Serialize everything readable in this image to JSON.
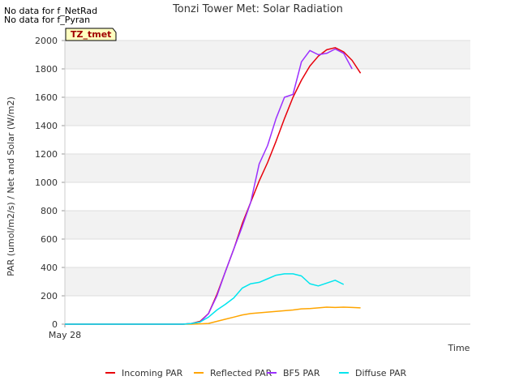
{
  "notes": [
    "No data for f_NetRad",
    "No data for f_Pyran"
  ],
  "site_badge": "TZ_tmet",
  "chart_data": {
    "type": "line",
    "title": "Tonzi Tower Met: Solar Radiation",
    "xlabel": "Time",
    "ylabel": "PAR (umol/m2/s) / Net and Solar (W/m2)",
    "x_tick_labels": [
      "May 28"
    ],
    "xlim": [
      0,
      24
    ],
    "ylim": [
      0,
      2000
    ],
    "yticks": [
      0,
      200,
      400,
      600,
      800,
      1000,
      1200,
      1400,
      1600,
      1800,
      2000
    ],
    "grid": true,
    "legend_position": "bottom",
    "x_hours": [
      0,
      0.5,
      1,
      1.5,
      2,
      2.5,
      3,
      3.5,
      4,
      4.5,
      5,
      5.5,
      6,
      6.5,
      7,
      7.5,
      8,
      8.5,
      9,
      9.5,
      10,
      10.5,
      11,
      11.5,
      12,
      12.5,
      13,
      13.5,
      14,
      14.5,
      15,
      15.5,
      16,
      16.5,
      17,
      17.5,
      18,
      18.5,
      19,
      19.5,
      20,
      20.5,
      21,
      21.5,
      22,
      22.5,
      23,
      23.5,
      24
    ],
    "series": [
      {
        "name": "Incoming PAR",
        "color": "#e8000b",
        "values": [
          0,
          0,
          0,
          0,
          0,
          0,
          0,
          0,
          0,
          0,
          0,
          0,
          0,
          0,
          0,
          5,
          20,
          75,
          210,
          370,
          530,
          710,
          860,
          1010,
          1140,
          1290,
          1450,
          1600,
          1720,
          1820,
          1890,
          1935,
          1950,
          1920,
          1860,
          1770
        ]
      },
      {
        "name": "Reflected PAR",
        "color": "#ffa500",
        "values": [
          0,
          0,
          0,
          0,
          0,
          0,
          0,
          0,
          0,
          0,
          0,
          0,
          0,
          0,
          0,
          0,
          2,
          5,
          20,
          35,
          50,
          65,
          75,
          80,
          85,
          90,
          95,
          100,
          108,
          110,
          115,
          120,
          118,
          120,
          118,
          115
        ]
      },
      {
        "name": "BF5 PAR",
        "color": "#9b30ff",
        "values": [
          0,
          0,
          0,
          0,
          0,
          0,
          0,
          0,
          0,
          0,
          0,
          0,
          0,
          0,
          0,
          5,
          15,
          75,
          200,
          370,
          530,
          690,
          860,
          1130,
          1260,
          1450,
          1600,
          1620,
          1850,
          1930,
          1900,
          1910,
          1940,
          1910,
          1800
        ]
      },
      {
        "name": "Diffuse PAR",
        "color": "#00e5ee",
        "values": [
          0,
          0,
          0,
          0,
          0,
          0,
          0,
          0,
          0,
          0,
          0,
          0,
          0,
          0,
          0,
          5,
          15,
          50,
          100,
          140,
          185,
          255,
          285,
          295,
          320,
          345,
          355,
          355,
          340,
          285,
          270,
          290,
          310,
          280
        ]
      }
    ]
  }
}
